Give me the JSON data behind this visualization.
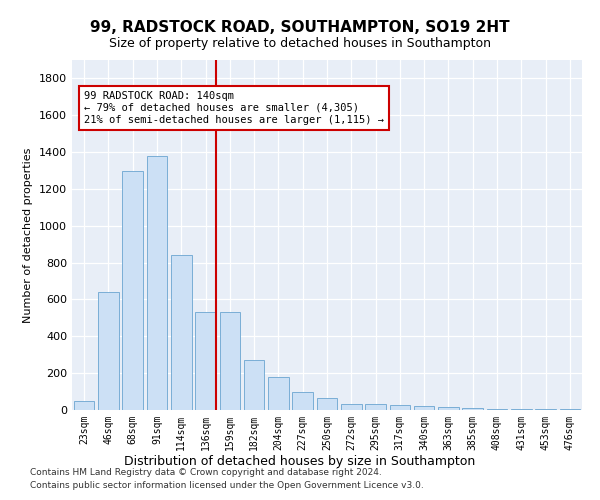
{
  "title": "99, RADSTOCK ROAD, SOUTHAMPTON, SO19 2HT",
  "subtitle": "Size of property relative to detached houses in Southampton",
  "xlabel": "Distribution of detached houses by size in Southampton",
  "ylabel": "Number of detached properties",
  "categories": [
    "23sqm",
    "46sqm",
    "68sqm",
    "91sqm",
    "114sqm",
    "136sqm",
    "159sqm",
    "182sqm",
    "204sqm",
    "227sqm",
    "250sqm",
    "272sqm",
    "295sqm",
    "317sqm",
    "340sqm",
    "363sqm",
    "385sqm",
    "408sqm",
    "431sqm",
    "453sqm",
    "476sqm"
  ],
  "values": [
    50,
    640,
    1300,
    1380,
    840,
    530,
    530,
    270,
    180,
    100,
    65,
    30,
    30,
    25,
    20,
    15,
    12,
    8,
    8,
    6,
    6
  ],
  "bar_color": "#cce0f5",
  "bar_edge_color": "#7aaed6",
  "vline_color": "#cc0000",
  "annotation_text": "99 RADSTOCK ROAD: 140sqm\n← 79% of detached houses are smaller (4,305)\n21% of semi-detached houses are larger (1,115) →",
  "annotation_box_color": "#ffffff",
  "annotation_box_edge": "#cc0000",
  "ylim": [
    0,
    1900
  ],
  "yticks": [
    0,
    200,
    400,
    600,
    800,
    1000,
    1200,
    1400,
    1600,
    1800
  ],
  "footer1": "Contains HM Land Registry data © Crown copyright and database right 2024.",
  "footer2": "Contains public sector information licensed under the Open Government Licence v3.0.",
  "bg_color": "#ffffff",
  "plot_bg_color": "#e8eef7",
  "grid_color": "#ffffff"
}
